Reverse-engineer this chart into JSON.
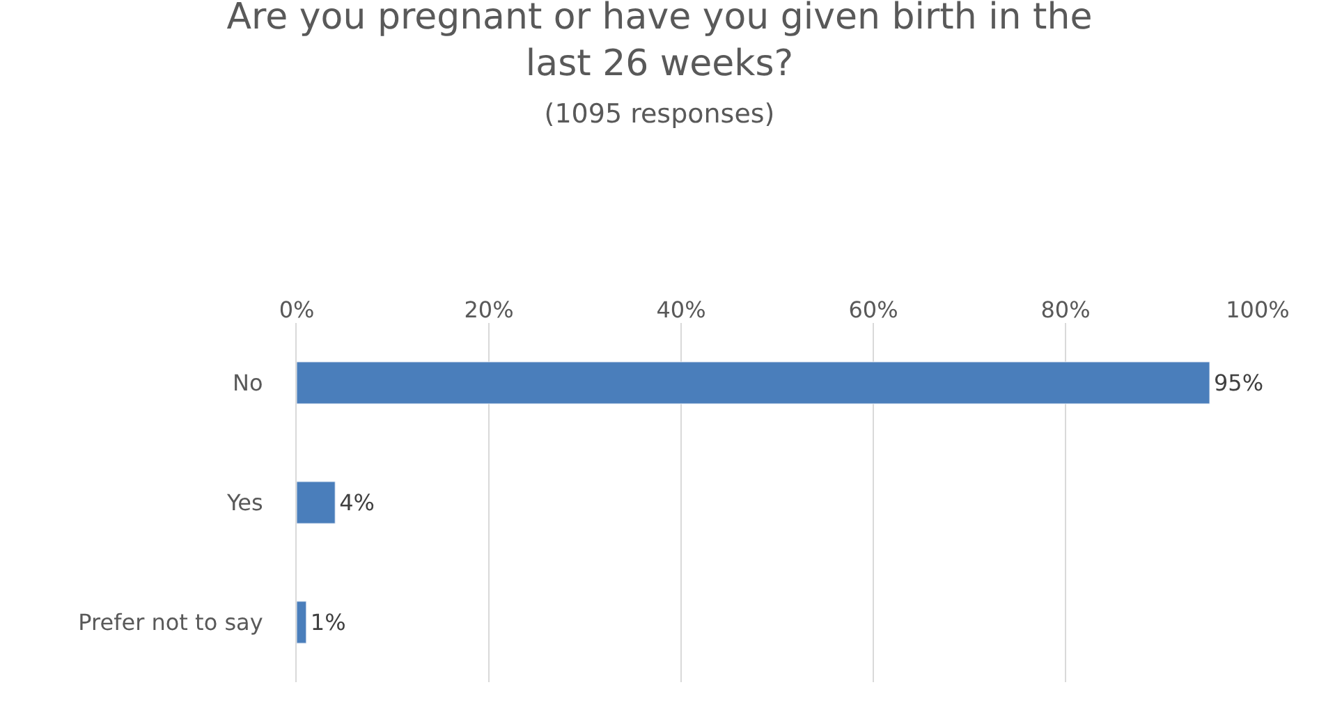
{
  "chart_data": {
    "type": "bar",
    "orientation": "horizontal",
    "title": "Are you pregnant or have you given birth in the last 26 weeks?",
    "subtitle": "(1095 responses)",
    "categories": [
      "No",
      "Yes",
      "Prefer not to say"
    ],
    "values": [
      95,
      4,
      1
    ],
    "value_labels": [
      "95%",
      "4%",
      "1%"
    ],
    "color": "#4a7ebb",
    "xlim": [
      0,
      100
    ],
    "xticks": [
      {
        "value": 0,
        "label": "0%"
      },
      {
        "value": 20,
        "label": "20%"
      },
      {
        "value": 40,
        "label": "40%"
      },
      {
        "value": 60,
        "label": "60%"
      },
      {
        "value": 80,
        "label": "80%"
      },
      {
        "value": 100,
        "label": "100%"
      }
    ],
    "grid": "x",
    "legend": false
  }
}
